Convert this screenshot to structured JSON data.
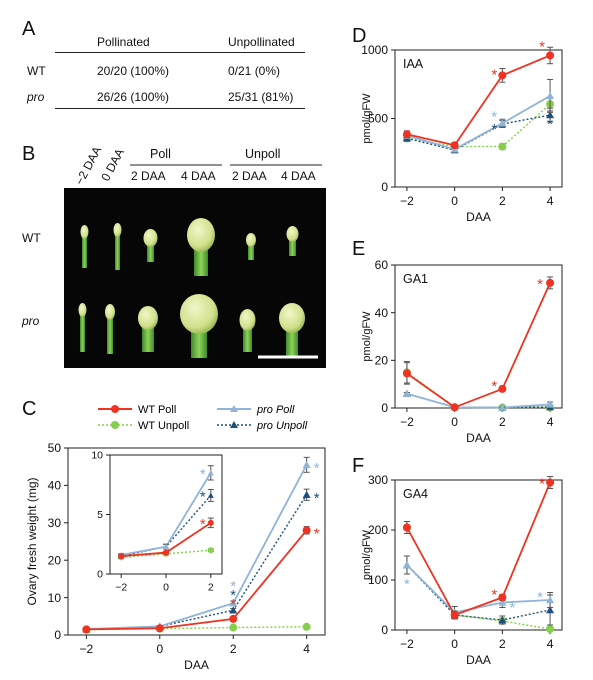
{
  "colors": {
    "wt_poll": "#ee3322",
    "pro_poll": "#8fb4d8",
    "wt_unpoll": "#86cf4a",
    "pro_unpoll": "#1f4f7a",
    "axis": "#222222"
  },
  "panelA": {
    "letter": "A",
    "headers": [
      "",
      "Pollinated",
      "Unpollinated"
    ],
    "rows": [
      {
        "genotype": "WT",
        "pollinated": "20/20 (100%)",
        "unpollinated": "0/21 (0%)"
      },
      {
        "genotype": "pro",
        "pollinated": "26/26 (100%)",
        "unpollinated": "25/31 (81%)"
      }
    ]
  },
  "panelB": {
    "letter": "B",
    "col_labels_rot": [
      "−2 DAA",
      "0 DAA"
    ],
    "group_labels": [
      "Poll",
      "Unpoll"
    ],
    "sub_labels": [
      "2 DAA",
      "4 DAA",
      "2 DAA",
      "4 DAA"
    ],
    "row_labels": [
      "WT",
      "pro"
    ]
  },
  "panelC": {
    "letter": "C",
    "legend": [
      "WT Poll",
      "pro Poll",
      "WT Unpoll",
      "pro Unpoll"
    ],
    "asterisk": "*"
  },
  "panelD": {
    "letter": "D"
  },
  "panelE": {
    "letter": "E"
  },
  "panelF": {
    "letter": "F"
  },
  "chart_data": [
    {
      "type": "line",
      "panel": "C",
      "x": [
        -2,
        0,
        2,
        4
      ],
      "xlabel": "DAA",
      "ylabel": "Ovary fresh weight (mg)",
      "xlim": [
        -2.5,
        4.5
      ],
      "ylim": [
        0,
        50
      ],
      "yticks": [
        0,
        10,
        20,
        30,
        40,
        50
      ],
      "xticks": [
        -2,
        0,
        2,
        4
      ],
      "series": [
        {
          "name": "WT Poll",
          "values": [
            1.5,
            1.8,
            4.3,
            28.0
          ],
          "err": [
            0.1,
            0.1,
            0.4,
            1.0
          ]
        },
        {
          "name": "pro Poll",
          "values": [
            1.6,
            2.3,
            8.5,
            45.5
          ],
          "err": [
            0.1,
            0.2,
            0.6,
            2.0
          ]
        },
        {
          "name": "WT Unpoll",
          "values": [
            1.4,
            1.7,
            2.0,
            2.2
          ],
          "err": [
            0.1,
            0.1,
            0.1,
            0.1
          ]
        },
        {
          "name": "pro Unpoll",
          "values": [
            1.5,
            2.3,
            6.6,
            37.5
          ],
          "err": [
            0.1,
            0.2,
            0.5,
            1.5
          ]
        }
      ],
      "inset": {
        "x": [
          -2,
          0,
          2
        ],
        "xlim": [
          -2.5,
          2.5
        ],
        "ylim": [
          0,
          10
        ],
        "yticks": [
          0,
          5,
          10
        ],
        "xticks": [
          -2,
          0,
          2
        ],
        "series": [
          {
            "name": "WT Poll",
            "values": [
              1.5,
              1.8,
              4.3
            ],
            "err": [
              0.1,
              0.1,
              0.4
            ]
          },
          {
            "name": "pro Poll",
            "values": [
              1.6,
              2.3,
              8.5
            ],
            "err": [
              0.1,
              0.2,
              0.6
            ]
          },
          {
            "name": "WT Unpoll",
            "values": [
              1.4,
              1.7,
              2.0
            ],
            "err": [
              0.1,
              0.1,
              0.1
            ]
          },
          {
            "name": "pro Unpoll",
            "values": [
              1.5,
              2.3,
              6.6
            ],
            "err": [
              0.1,
              0.2,
              0.5
            ]
          }
        ]
      }
    },
    {
      "type": "line",
      "panel": "D",
      "title": "IAA",
      "x": [
        -2,
        0,
        2,
        4
      ],
      "xlabel": "DAA",
      "ylabel": "pmol/gFW",
      "xlim": [
        -2.5,
        4.5
      ],
      "ylim": [
        0,
        1000
      ],
      "yticks": [
        0,
        500,
        1000
      ],
      "xticks": [
        -2,
        0,
        2,
        4
      ],
      "series": [
        {
          "name": "WT Poll",
          "values": [
            385,
            305,
            815,
            960
          ],
          "err": [
            25,
            20,
            50,
            60
          ]
        },
        {
          "name": "pro Poll",
          "values": [
            375,
            275,
            465,
            665
          ],
          "err": [
            20,
            20,
            30,
            120
          ]
        },
        {
          "name": "WT Unpoll",
          "values": [
            355,
            295,
            295,
            605
          ],
          "err": [
            20,
            20,
            20,
            50
          ]
        },
        {
          "name": "pro Unpoll",
          "values": [
            355,
            270,
            460,
            525
          ],
          "err": [
            20,
            20,
            25,
            50
          ]
        }
      ]
    },
    {
      "type": "line",
      "panel": "E",
      "title": "GA1",
      "x": [
        -2,
        0,
        2,
        4
      ],
      "xlabel": "DAA",
      "ylabel": "pmol/gFW",
      "xlim": [
        -2.5,
        4.5
      ],
      "ylim": [
        0,
        60
      ],
      "yticks": [
        0,
        20,
        40,
        60
      ],
      "xticks": [
        -2,
        0,
        2,
        4
      ],
      "series": [
        {
          "name": "WT Poll",
          "values": [
            14.5,
            0.3,
            8.0,
            52.5
          ],
          "err": [
            4.5,
            0.3,
            0.8,
            2.5
          ]
        },
        {
          "name": "pro Poll",
          "values": [
            6.0,
            0.3,
            0.2,
            1.5
          ],
          "err": [
            0.5,
            0.2,
            0.2,
            1.0
          ]
        },
        {
          "name": "WT Unpoll",
          "values": [
            15.0,
            0.3,
            0.2,
            0.3
          ],
          "err": [
            4.5,
            0.2,
            0.2,
            0.3
          ]
        },
        {
          "name": "pro Unpoll",
          "values": [
            6.0,
            0.3,
            0.2,
            0.4
          ],
          "err": [
            0.5,
            0.2,
            0.2,
            0.3
          ]
        }
      ]
    },
    {
      "type": "line",
      "panel": "F",
      "title": "GA4",
      "x": [
        -2,
        0,
        2,
        4
      ],
      "xlabel": "DAA",
      "ylabel": "pmol/gFW",
      "xlim": [
        -2.5,
        4.5
      ],
      "ylim": [
        0,
        300
      ],
      "yticks": [
        0,
        100,
        200,
        300
      ],
      "xticks": [
        -2,
        0,
        2,
        4
      ],
      "series": [
        {
          "name": "WT Poll",
          "values": [
            205,
            30,
            65,
            295
          ],
          "err": [
            12,
            8,
            6,
            12
          ]
        },
        {
          "name": "pro Poll",
          "values": [
            130,
            35,
            55,
            60
          ],
          "err": [
            18,
            12,
            10,
            15
          ]
        },
        {
          "name": "WT Unpoll",
          "values": [
            205,
            30,
            18,
            2
          ],
          "err": [
            12,
            8,
            6,
            2
          ]
        },
        {
          "name": "pro Unpoll",
          "values": [
            130,
            30,
            20,
            40
          ],
          "err": [
            18,
            8,
            8,
            30
          ]
        }
      ]
    }
  ]
}
